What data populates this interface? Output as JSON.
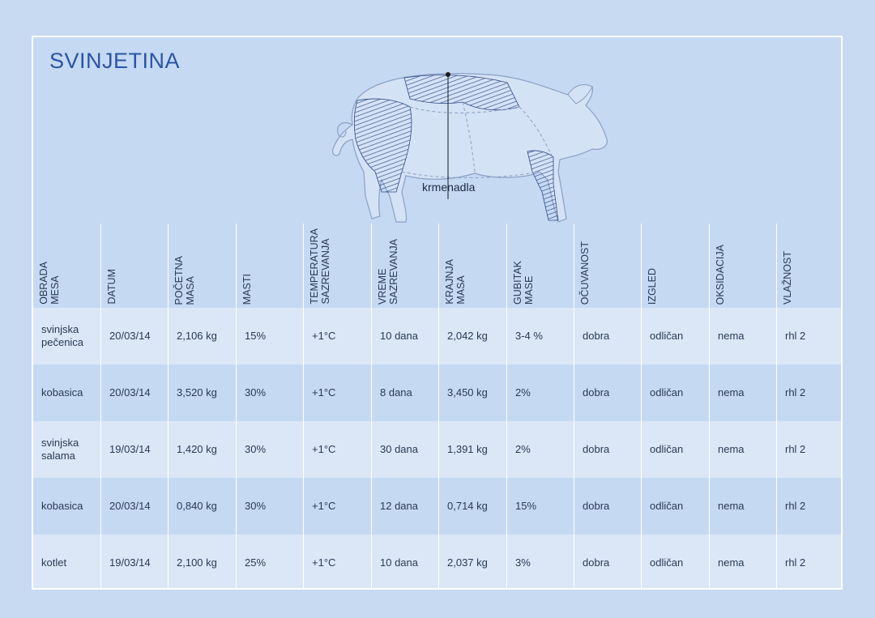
{
  "title": "SVINJETINA",
  "illustration": {
    "icon": "pig-icon",
    "label": "krmenadla"
  },
  "table": {
    "columns": [
      "OBRADA\nMESA",
      "DATUM",
      "POČETNA\nMASA",
      "MASTI",
      "TEMPERATURA\nSAZREVANJA",
      "VREME\nSAZREVANJA",
      "KRAJNJA\nMASA",
      "GUBITAK\nMASE",
      "OČUVANOST",
      "IZGLED",
      "OKSIDACIJA",
      "VLAŽNOST"
    ],
    "rows": [
      [
        "svinjska\npečenica",
        "20/03/14",
        "2,106 kg",
        "15%",
        "+1°C",
        "10 dana",
        "2,042  kg",
        "3-4 %",
        "dobra",
        "odličan",
        "nema",
        "rhl 2"
      ],
      [
        "kobasica",
        "20/03/14",
        "3,520  kg",
        "30%",
        "+1°C",
        "8 dana",
        "3,450  kg",
        "2%",
        "dobra",
        "odličan",
        "nema",
        "rhl 2"
      ],
      [
        "svinjska\nsalama",
        "19/03/14",
        "1,420  kg",
        "30%",
        "+1°C",
        "30 dana",
        "1,391  kg",
        "2%",
        "dobra",
        "odličan",
        "nema",
        "rhl 2"
      ],
      [
        "kobasica",
        "20/03/14",
        "0,840  kg",
        "30%",
        "+1°C",
        "12 dana",
        "0,714  kg",
        "15%",
        "dobra",
        "odličan",
        "nema",
        "rhl 2"
      ],
      [
        "kotlet",
        "19/03/14",
        "2,100  kg",
        "25%",
        "+1°C",
        "10 dana",
        "2,037  kg",
        "3%",
        "dobra",
        "odličan",
        "nema",
        "rhl 2"
      ]
    ]
  },
  "colors": {
    "background": "#c8daf2",
    "title": "#2b55a4",
    "row_light": "#dbe7f7",
    "row_dark": "#c5d9f3",
    "hatch": "#2e4a8a"
  }
}
